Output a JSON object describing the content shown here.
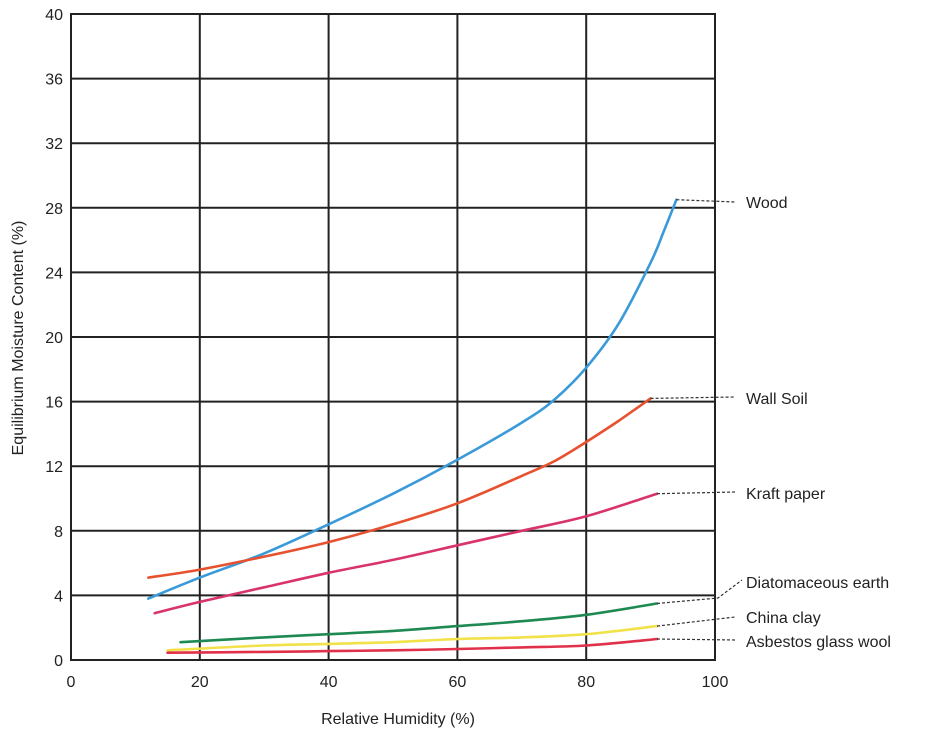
{
  "chart_data": {
    "type": "line",
    "title": "",
    "xlabel": "Relative Humidity (%)",
    "ylabel": "Equilibrium Moisture Content (%)",
    "xlim": [
      0,
      100
    ],
    "ylim": [
      0,
      40
    ],
    "xticks": [
      0,
      20,
      40,
      60,
      80,
      100
    ],
    "yticks": [
      0,
      4,
      8,
      12,
      16,
      20,
      24,
      28,
      32,
      36,
      40
    ],
    "grid": true,
    "series": [
      {
        "name": "Wood",
        "color": "#3a9ad9",
        "x": [
          12,
          20,
          30,
          40,
          50,
          60,
          70,
          75,
          80,
          85,
          90,
          92,
          94
        ],
        "y": [
          3.8,
          5.1,
          6.6,
          8.4,
          10.3,
          12.4,
          14.7,
          16.1,
          18.1,
          20.8,
          24.6,
          26.5,
          28.5
        ]
      },
      {
        "name": "Wall Soil",
        "color": "#e8512f",
        "x": [
          12,
          20,
          30,
          40,
          50,
          60,
          70,
          75,
          80,
          85,
          90
        ],
        "y": [
          5.1,
          5.6,
          6.4,
          7.3,
          8.4,
          9.7,
          11.4,
          12.3,
          13.5,
          14.8,
          16.2
        ]
      },
      {
        "name": "Kraft paper",
        "color": "#d9336e",
        "x": [
          13,
          20,
          30,
          40,
          50,
          60,
          70,
          80,
          91
        ],
        "y": [
          2.9,
          3.6,
          4.5,
          5.4,
          6.2,
          7.1,
          8.0,
          8.9,
          10.3
        ]
      },
      {
        "name": "Diatomaceous earth",
        "color": "#1e8a52",
        "x": [
          17,
          30,
          40,
          50,
          60,
          70,
          80,
          91
        ],
        "y": [
          1.1,
          1.4,
          1.6,
          1.8,
          2.1,
          2.4,
          2.8,
          3.5
        ]
      },
      {
        "name": "China clay",
        "color": "#f2e24a",
        "x": [
          15,
          30,
          40,
          50,
          60,
          70,
          80,
          91
        ],
        "y": [
          0.6,
          0.9,
          1.0,
          1.1,
          1.3,
          1.4,
          1.6,
          2.1
        ]
      },
      {
        "name": "Asbestos glass wool",
        "color": "#e0304a",
        "x": [
          15,
          30,
          40,
          50,
          60,
          70,
          80,
          91
        ],
        "y": [
          0.45,
          0.5,
          0.55,
          0.6,
          0.68,
          0.78,
          0.9,
          1.3
        ]
      }
    ]
  }
}
